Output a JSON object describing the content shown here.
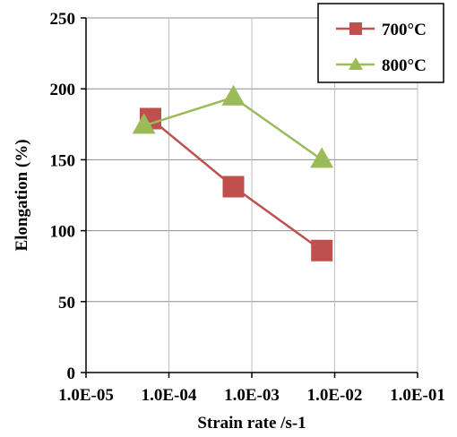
{
  "chart_data": {
    "type": "scatter",
    "xscale": "log",
    "xlabel": "Strain rate /s-1",
    "ylabel": "Elongation (%)",
    "xlim": [
      1e-05,
      0.1
    ],
    "ylim": [
      0,
      250
    ],
    "x_ticks": [
      1e-05,
      0.0001,
      0.001,
      0.01,
      0.1
    ],
    "x_tick_labels": [
      "1.0E-05",
      "1.0E-04",
      "1.0E-03",
      "1.0E-02",
      "1.0E-01"
    ],
    "y_ticks": [
      0,
      50,
      100,
      150,
      200,
      250
    ],
    "y_tick_labels": [
      "0",
      "50",
      "100",
      "150",
      "200",
      "250"
    ],
    "grid": "horizontal",
    "legend_position": "top-right",
    "series": [
      {
        "name": "700°C",
        "marker": "square",
        "color": "#C0504D",
        "points": [
          {
            "x": 6e-05,
            "y": 179
          },
          {
            "x": 0.0006,
            "y": 131
          },
          {
            "x": 0.007,
            "y": 86
          }
        ]
      },
      {
        "name": "800°C",
        "marker": "triangle",
        "color": "#9BBB59",
        "points": [
          {
            "x": 5e-05,
            "y": 174
          },
          {
            "x": 0.0006,
            "y": 194
          },
          {
            "x": 0.007,
            "y": 150
          }
        ]
      }
    ]
  }
}
